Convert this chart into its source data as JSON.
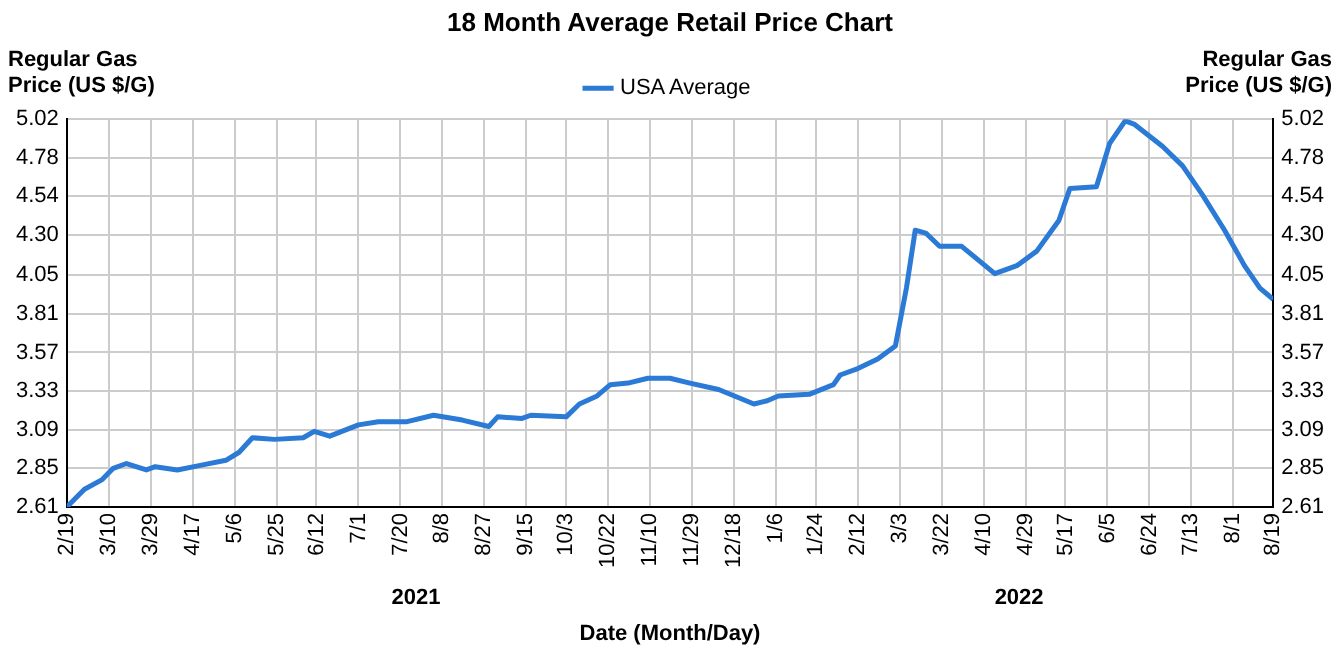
{
  "chart_data": {
    "type": "line",
    "title": "18 Month Average Retail Price Chart",
    "xlabel": "Date (Month/Day)",
    "ylabel": "Regular Gas Price (US $/G)",
    "y2label": "Regular Gas Price (US $/G)",
    "x": [
      "2021-02-19",
      "2021-02-27",
      "2021-03-07",
      "2021-03-12",
      "2021-03-18",
      "2021-03-27",
      "2021-03-31",
      "2021-04-10",
      "2021-04-21",
      "2021-05-02",
      "2021-05-08",
      "2021-05-14",
      "2021-05-24",
      "2021-06-06",
      "2021-06-11",
      "2021-06-18",
      "2021-07-01",
      "2021-07-10",
      "2021-07-23",
      "2021-08-04",
      "2021-08-17",
      "2021-08-29",
      "2021-09-02",
      "2021-09-13",
      "2021-09-17",
      "2021-10-03",
      "2021-10-09",
      "2021-10-17",
      "2021-10-23",
      "2021-10-31",
      "2021-11-09",
      "2021-11-19",
      "2021-11-28",
      "2021-12-11",
      "2021-12-27",
      "2022-01-02",
      "2022-01-07",
      "2022-01-21",
      "2022-02-01",
      "2022-02-04",
      "2022-02-12",
      "2022-02-21",
      "2022-03-01",
      "2022-03-06",
      "2022-03-10",
      "2022-03-15",
      "2022-03-21",
      "2022-03-31",
      "2022-04-15",
      "2022-04-25",
      "2022-05-04",
      "2022-05-14",
      "2022-05-19",
      "2022-05-31",
      "2022-06-06",
      "2022-06-13",
      "2022-06-17",
      "2022-06-30",
      "2022-07-09",
      "2022-07-18",
      "2022-07-28",
      "2022-08-06",
      "2022-08-13",
      "2022-08-19"
    ],
    "series": [
      {
        "name": "USA Average",
        "color": "#2a7ad6",
        "values": [
          2.61,
          2.72,
          2.78,
          2.85,
          2.88,
          2.84,
          2.86,
          2.84,
          2.87,
          2.9,
          2.95,
          3.04,
          3.03,
          3.04,
          3.08,
          3.05,
          3.12,
          3.14,
          3.14,
          3.18,
          3.15,
          3.11,
          3.17,
          3.16,
          3.18,
          3.17,
          3.25,
          3.3,
          3.37,
          3.38,
          3.41,
          3.41,
          3.38,
          3.34,
          3.25,
          3.27,
          3.3,
          3.31,
          3.37,
          3.43,
          3.47,
          3.53,
          3.61,
          3.97,
          4.33,
          4.31,
          4.23,
          4.23,
          4.06,
          4.11,
          4.2,
          4.39,
          4.59,
          4.6,
          4.87,
          5.01,
          4.99,
          4.85,
          4.73,
          4.55,
          4.33,
          4.11,
          3.97,
          3.9
        ]
      }
    ],
    "xlim": [
      "2021-02-19",
      "2022-08-19"
    ],
    "xticks": [
      {
        "value": "2021-02-19",
        "label": "2/19"
      },
      {
        "value": "2021-03-10",
        "label": "3/10"
      },
      {
        "value": "2021-03-29",
        "label": "3/29"
      },
      {
        "value": "2021-04-17",
        "label": "4/17"
      },
      {
        "value": "2021-05-06",
        "label": "5/6"
      },
      {
        "value": "2021-05-25",
        "label": "5/25"
      },
      {
        "value": "2021-06-12",
        "label": "6/12"
      },
      {
        "value": "2021-07-01",
        "label": "7/1"
      },
      {
        "value": "2021-07-20",
        "label": "7/20"
      },
      {
        "value": "2021-08-08",
        "label": "8/8"
      },
      {
        "value": "2021-08-27",
        "label": "8/27"
      },
      {
        "value": "2021-09-15",
        "label": "9/15"
      },
      {
        "value": "2021-10-03",
        "label": "10/3"
      },
      {
        "value": "2021-10-22",
        "label": "10/22"
      },
      {
        "value": "2021-11-10",
        "label": "11/10"
      },
      {
        "value": "2021-11-29",
        "label": "11/29"
      },
      {
        "value": "2021-12-18",
        "label": "12/18"
      },
      {
        "value": "2022-01-06",
        "label": "1/6"
      },
      {
        "value": "2022-01-24",
        "label": "1/24"
      },
      {
        "value": "2022-02-12",
        "label": "2/12"
      },
      {
        "value": "2022-03-03",
        "label": "3/3"
      },
      {
        "value": "2022-03-22",
        "label": "3/22"
      },
      {
        "value": "2022-04-10",
        "label": "4/10"
      },
      {
        "value": "2022-04-29",
        "label": "4/29"
      },
      {
        "value": "2022-05-17",
        "label": "5/17"
      },
      {
        "value": "2022-06-05",
        "label": "6/5"
      },
      {
        "value": "2022-06-24",
        "label": "6/24"
      },
      {
        "value": "2022-07-13",
        "label": "7/13"
      },
      {
        "value": "2022-08-01",
        "label": "8/1"
      },
      {
        "value": "2022-08-19",
        "label": "8/19"
      }
    ],
    "ylim": [
      2.61,
      5.02
    ],
    "yticks": [
      2.61,
      2.85,
      3.09,
      3.33,
      3.57,
      3.81,
      4.05,
      {
        "value": 4.3,
        "label": "4.30"
      },
      4.54,
      4.78,
      5.02
    ],
    "y2lim": [
      2.61,
      5.02
    ],
    "y2ticks": [
      2.61,
      2.85,
      3.09,
      3.33,
      3.57,
      3.81,
      4.05,
      {
        "value": 4.3,
        "label": "4.30"
      },
      4.54,
      4.78,
      5.02
    ],
    "annotations": [
      "2021",
      "2022"
    ],
    "grid": true,
    "legend": "top",
    "marker": "none",
    "line_style": "solid"
  }
}
